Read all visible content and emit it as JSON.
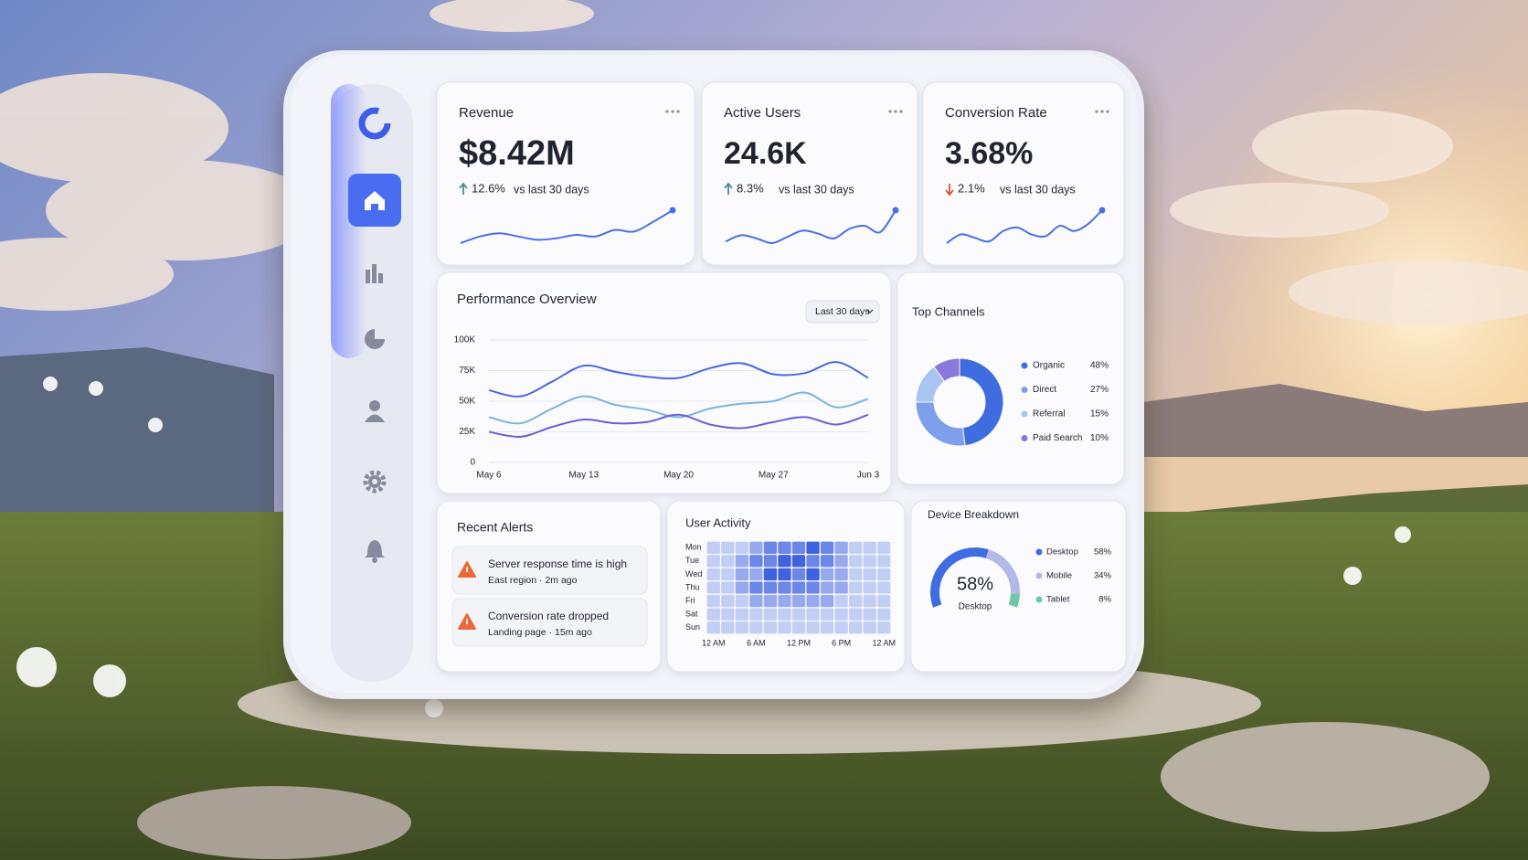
{
  "kpis": [
    {
      "title": "Revenue",
      "value": "$8.42M",
      "change": "12.6%",
      "direction": "up",
      "comparison": "vs last 30 days",
      "color": "#4a6fe3",
      "sparkline": [
        20,
        24,
        26,
        24,
        22,
        23,
        25,
        24,
        28,
        27,
        33,
        40
      ]
    },
    {
      "title": "Active Users",
      "value": "24.6K",
      "change": "8.3%",
      "direction": "up",
      "comparison": "vs last 30 days",
      "color": "#4a6fe3",
      "sparkline": [
        18,
        22,
        20,
        17,
        21,
        25,
        23,
        20,
        26,
        28,
        24,
        38
      ]
    },
    {
      "title": "Conversion Rate",
      "value": "3.68%",
      "change": "2.1%",
      "direction": "down",
      "comparison": "vs last 30 days",
      "color": "#4a6fe3",
      "sparkline": [
        15,
        20,
        18,
        16,
        22,
        24,
        20,
        19,
        25,
        22,
        26,
        34
      ]
    }
  ],
  "performance": {
    "type": "line",
    "title": "Performance Overview",
    "range": "Last 30 days",
    "x": [
      "May 6",
      null,
      null,
      "May 13",
      null,
      null,
      "May 20",
      null,
      null,
      "May 27",
      null,
      null,
      "Jun 3"
    ],
    "ylim": [
      0,
      100000
    ],
    "yticks": [
      0,
      {
        "value": 25000,
        "label": "25K"
      },
      {
        "value": 50000,
        "label": "50K"
      },
      {
        "value": 75000,
        "label": "75K"
      },
      {
        "value": 100000,
        "label": "100K"
      }
    ],
    "grid": true,
    "series": [
      {
        "color": "#4b67de",
        "values": [
          59000,
          54000,
          66000,
          79000,
          74000,
          70000,
          69000,
          77000,
          81000,
          72000,
          73000,
          82000,
          69000
        ]
      },
      {
        "color": "#7fb3dc",
        "values": [
          37000,
          32000,
          44000,
          54000,
          47000,
          43000,
          37000,
          44000,
          48000,
          50000,
          57000,
          45000,
          52000
        ]
      },
      {
        "color": "#6a5fd6",
        "values": [
          25000,
          21000,
          29000,
          35000,
          32000,
          33000,
          39000,
          31000,
          28000,
          33000,
          37000,
          31000,
          39000
        ]
      }
    ]
  },
  "channels": {
    "type": "donut",
    "title": "Top Channels",
    "categories": [
      "Organic",
      "Direct",
      "Referral",
      "Paid Search"
    ],
    "values": [
      48,
      27,
      15,
      10
    ],
    "value_labels": [
      "48%",
      "27%",
      "15%",
      "10%"
    ],
    "colors": [
      "#3f6de0",
      "#7f9fec",
      "#a9c4f2",
      "#8a78dc"
    ]
  },
  "activity": {
    "type": "heatmap",
    "title": "User Activity",
    "rows": [
      "Mon",
      "Tue",
      "Wed",
      "Thu",
      "Fri",
      "Sat",
      "Sun"
    ],
    "columns": [
      "12 AM",
      null,
      null,
      "6 AM",
      null,
      null,
      "12 PM",
      null,
      null,
      "6 PM",
      null,
      null,
      "12 AM"
    ],
    "color": "#3f63e0",
    "values": [
      [
        1,
        1,
        1,
        2,
        3,
        3,
        3,
        4,
        3,
        2,
        1,
        1,
        1
      ],
      [
        1,
        1,
        2,
        3,
        3,
        4,
        4,
        3,
        3,
        2,
        1,
        1,
        1
      ],
      [
        1,
        1,
        2,
        2,
        4,
        4,
        3,
        4,
        2,
        2,
        1,
        1,
        1
      ],
      [
        1,
        1,
        2,
        3,
        3,
        3,
        3,
        3,
        2,
        2,
        1,
        1,
        1
      ],
      [
        1,
        1,
        1,
        2,
        2,
        2,
        2,
        2,
        2,
        1,
        1,
        1,
        1
      ],
      [
        1,
        1,
        1,
        1,
        1,
        1,
        1,
        1,
        1,
        1,
        1,
        1,
        1
      ],
      [
        1,
        1,
        1,
        1,
        1,
        1,
        1,
        1,
        1,
        1,
        1,
        1,
        1
      ]
    ]
  },
  "devices": {
    "type": "gauge",
    "title": "Device Breakdown",
    "categories": [
      "Desktop",
      "Mobile",
      "Tablet"
    ],
    "values": [
      58,
      34,
      8
    ],
    "value_labels": [
      "58%",
      "34%",
      "8%"
    ],
    "colors": [
      "#3f6de0",
      "#b3b9e6",
      "#6fc7a8"
    ]
  },
  "alerts": {
    "title": "Recent Alerts",
    "items": [
      {
        "title": "Server response time is high",
        "detail": "East region · 2m ago"
      },
      {
        "title": "Conversion rate dropped",
        "detail": "Landing page · 15m ago"
      }
    ]
  }
}
